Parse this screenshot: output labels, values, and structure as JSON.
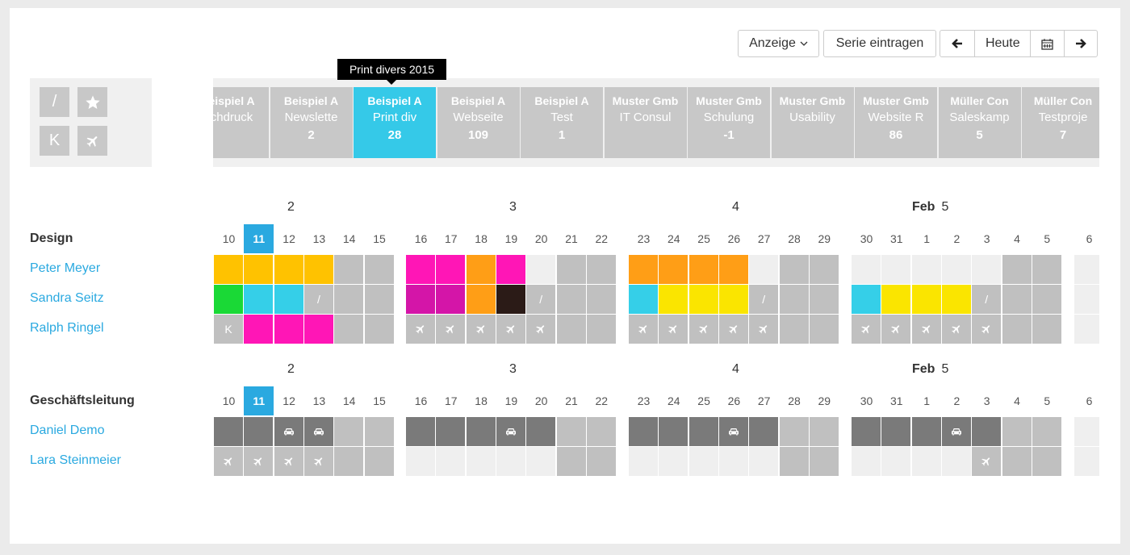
{
  "toolbar": {
    "anzeige_label": "Anzeige",
    "serie_label": "Serie eintragen",
    "heute_label": "Heute"
  },
  "quick_buttons": [
    {
      "label": "/",
      "icon": "slash"
    },
    {
      "label": "",
      "icon": "star-icon"
    },
    {
      "label": "K",
      "icon": "letter-k"
    },
    {
      "label": "",
      "icon": "plane-icon"
    }
  ],
  "tooltip": "Print divers 2015",
  "projects": [
    {
      "company": "Beispiel A",
      "name": "Schdruck",
      "value": ""
    },
    {
      "company": "Beispiel A",
      "name": "Newslette",
      "value": "2"
    },
    {
      "company": "Beispiel A",
      "name": "Print div",
      "value": "28",
      "active": true
    },
    {
      "company": "Beispiel A",
      "name": "Webseite",
      "value": "109"
    },
    {
      "company": "Beispiel A",
      "name": "Test",
      "value": "1"
    },
    {
      "company": "Muster Gmb",
      "name": "IT Consul",
      "value": ""
    },
    {
      "company": "Muster Gmb",
      "name": "Schulung",
      "value": "-1"
    },
    {
      "company": "Muster Gmb",
      "name": "Usability",
      "value": ""
    },
    {
      "company": "Muster Gmb",
      "name": "Website R",
      "value": "86"
    },
    {
      "company": "Müller Con",
      "name": "Saleskamp",
      "value": "5"
    },
    {
      "company": "Müller Con",
      "name": "Testproje",
      "value": "7"
    }
  ],
  "weeks": [
    {
      "month": "",
      "num": "2"
    },
    {
      "month": "",
      "num": "3"
    },
    {
      "month": "",
      "num": "4"
    },
    {
      "month": "Feb",
      "num": "5"
    }
  ],
  "days": [
    "10",
    "11",
    "12",
    "13",
    "14",
    "15",
    "16",
    "17",
    "18",
    "19",
    "20",
    "21",
    "22",
    "23",
    "24",
    "25",
    "26",
    "27",
    "28",
    "29",
    "30",
    "31",
    "1",
    "2",
    "3",
    "4",
    "5",
    "6"
  ],
  "today_index": 1,
  "colors": {
    "orange_yellow": "#ffc200",
    "magenta": "#ff16b6",
    "orange": "#ff9e16",
    "cyan": "#35cfe8",
    "green": "#1ad936",
    "yellow": "#fae500",
    "dark_magenta": "#d415a8",
    "dark": "#2b1b17",
    "gray": "#c0c0c0",
    "light": "#efefef",
    "dark_gray": "#7a7a7a",
    "accent": "#2aa9e0"
  },
  "groups": [
    {
      "name": "Design",
      "people": [
        {
          "name": "Peter Meyer",
          "cells": [
            [
              "O"
            ],
            [
              "O"
            ],
            [
              "O"
            ],
            [
              "O"
            ],
            [
              "G"
            ],
            [
              "G"
            ],
            [
              "M"
            ],
            [
              "M"
            ],
            [
              "OR"
            ],
            [
              "M"
            ],
            [
              "L"
            ],
            [
              "G"
            ],
            [
              "G"
            ],
            [
              "OR"
            ],
            [
              "OR"
            ],
            [
              "OR"
            ],
            [
              "OR"
            ],
            [
              "L"
            ],
            [
              "G"
            ],
            [
              "G"
            ],
            [
              "L"
            ],
            [
              "L"
            ],
            [
              "L"
            ],
            [
              "L"
            ],
            [
              "L"
            ],
            [
              "G"
            ],
            [
              "G"
            ],
            [
              "L"
            ]
          ]
        },
        {
          "name": "Sandra Seitz",
          "cells": [
            [
              "GR"
            ],
            [
              "C"
            ],
            [
              "C"
            ],
            [
              "G",
              "/"
            ],
            [
              "G"
            ],
            [
              "G"
            ],
            [
              "DM"
            ],
            [
              "DM"
            ],
            [
              "OR"
            ],
            [
              "D"
            ],
            [
              "G",
              "/"
            ],
            [
              "G"
            ],
            [
              "G"
            ],
            [
              "C"
            ],
            [
              "Y"
            ],
            [
              "Y"
            ],
            [
              "Y"
            ],
            [
              "G",
              "/"
            ],
            [
              "G"
            ],
            [
              "G"
            ],
            [
              "C"
            ],
            [
              "Y"
            ],
            [
              "Y"
            ],
            [
              "Y"
            ],
            [
              "G",
              "/"
            ],
            [
              "G"
            ],
            [
              "G"
            ],
            [
              "L"
            ]
          ]
        },
        {
          "name": "Ralph Ringel",
          "cells": [
            [
              "G",
              "K"
            ],
            [
              "M"
            ],
            [
              "M"
            ],
            [
              "M"
            ],
            [
              "G"
            ],
            [
              "G"
            ],
            [
              "G",
              "plane"
            ],
            [
              "G",
              "plane"
            ],
            [
              "G",
              "plane"
            ],
            [
              "G",
              "plane"
            ],
            [
              "G",
              "plane"
            ],
            [
              "G"
            ],
            [
              "G"
            ],
            [
              "G",
              "plane"
            ],
            [
              "G",
              "plane"
            ],
            [
              "G",
              "plane"
            ],
            [
              "G",
              "plane"
            ],
            [
              "G",
              "plane"
            ],
            [
              "G"
            ],
            [
              "G"
            ],
            [
              "G",
              "plane"
            ],
            [
              "G",
              "plane"
            ],
            [
              "G",
              "plane"
            ],
            [
              "G",
              "plane"
            ],
            [
              "G",
              "plane"
            ],
            [
              "G"
            ],
            [
              "G"
            ],
            [
              "L"
            ]
          ]
        }
      ]
    },
    {
      "name": "Geschäftsleitung",
      "people": [
        {
          "name": "Daniel Demo",
          "cells": [
            [
              "DG"
            ],
            [
              "DG"
            ],
            [
              "DG",
              "car"
            ],
            [
              "DG",
              "car"
            ],
            [
              "G"
            ],
            [
              "G"
            ],
            [
              "DG"
            ],
            [
              "DG"
            ],
            [
              "DG"
            ],
            [
              "DG",
              "car"
            ],
            [
              "DG"
            ],
            [
              "G"
            ],
            [
              "G"
            ],
            [
              "DG"
            ],
            [
              "DG"
            ],
            [
              "DG"
            ],
            [
              "DG",
              "car"
            ],
            [
              "DG"
            ],
            [
              "G"
            ],
            [
              "G"
            ],
            [
              "DG"
            ],
            [
              "DG"
            ],
            [
              "DG"
            ],
            [
              "DG",
              "car"
            ],
            [
              "DG"
            ],
            [
              "G"
            ],
            [
              "G"
            ],
            [
              "L"
            ]
          ]
        },
        {
          "name": "Lara Steinmeier",
          "cells": [
            [
              "G",
              "plane"
            ],
            [
              "G",
              "plane"
            ],
            [
              "G",
              "plane"
            ],
            [
              "G",
              "plane"
            ],
            [
              "G"
            ],
            [
              "G"
            ],
            [
              "L"
            ],
            [
              "L"
            ],
            [
              "L"
            ],
            [
              "L"
            ],
            [
              "L"
            ],
            [
              "G"
            ],
            [
              "G"
            ],
            [
              "L"
            ],
            [
              "L"
            ],
            [
              "L"
            ],
            [
              "L"
            ],
            [
              "L"
            ],
            [
              "G"
            ],
            [
              "G"
            ],
            [
              "L"
            ],
            [
              "L"
            ],
            [
              "L"
            ],
            [
              "L"
            ],
            [
              "G",
              "plane"
            ],
            [
              "G"
            ],
            [
              "G"
            ],
            [
              "L"
            ]
          ]
        }
      ]
    }
  ]
}
